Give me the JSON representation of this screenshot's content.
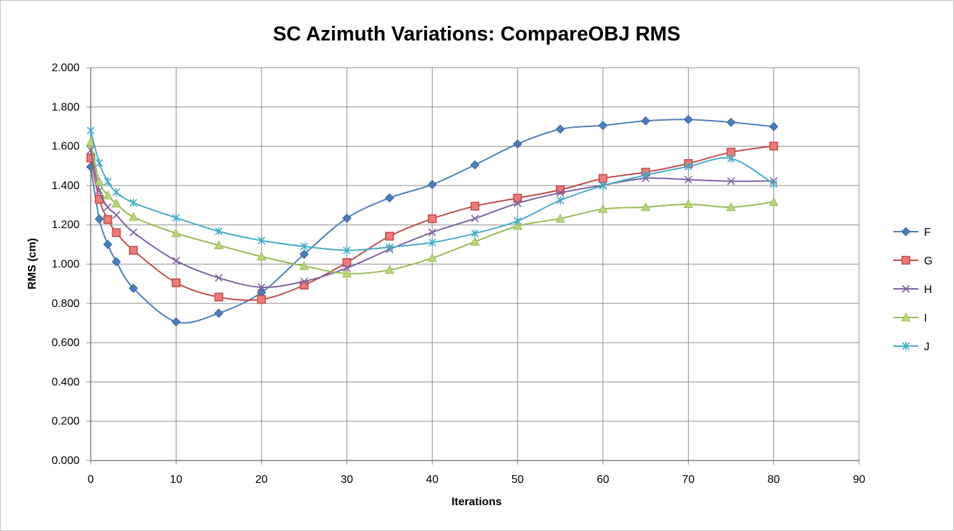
{
  "chart_data": {
    "type": "line",
    "title": "SC Azimuth Variations: CompareOBJ RMS",
    "xlabel": "Iterations",
    "ylabel": "RMS (cm)",
    "xlim": [
      0,
      90
    ],
    "ylim": [
      0,
      2
    ],
    "xticks": [
      "0",
      "10",
      "20",
      "30",
      "40",
      "50",
      "60",
      "70",
      "80",
      "90"
    ],
    "yticks": [
      "0.000",
      "0.200",
      "0.400",
      "0.600",
      "0.800",
      "1.000",
      "1.200",
      "1.400",
      "1.600",
      "1.800",
      "2.000"
    ],
    "grid": true,
    "legend_position": "right",
    "x": [
      0,
      1,
      2,
      3,
      5,
      10,
      15,
      20,
      25,
      30,
      35,
      40,
      45,
      50,
      55,
      60,
      65,
      70,
      75,
      80
    ],
    "series": [
      {
        "name": "F",
        "color": "#4a7ebb",
        "marker": "diamond",
        "values": [
          1.495,
          1.23,
          1.1,
          1.012,
          0.877,
          0.706,
          0.75,
          0.855,
          1.05,
          1.234,
          1.337,
          1.405,
          1.505,
          1.612,
          1.687,
          1.706,
          1.729,
          1.736,
          1.722,
          1.7
        ]
      },
      {
        "name": "G",
        "color": "#be4b48",
        "marker": "square",
        "values": [
          1.54,
          1.33,
          1.227,
          1.16,
          1.07,
          0.905,
          0.832,
          0.82,
          0.893,
          1.008,
          1.142,
          1.231,
          1.295,
          1.336,
          1.378,
          1.436,
          1.468,
          1.512,
          1.57,
          1.601
        ]
      },
      {
        "name": "H",
        "color": "#7d60a0",
        "marker": "x",
        "values": [
          1.58,
          1.375,
          1.29,
          1.25,
          1.162,
          1.017,
          0.93,
          0.882,
          0.912,
          0.98,
          1.075,
          1.162,
          1.232,
          1.31,
          1.363,
          1.402,
          1.437,
          1.43,
          1.422,
          1.423
        ]
      },
      {
        "name": "I",
        "color": "#98b954",
        "marker": "triangle",
        "values": [
          1.62,
          1.42,
          1.35,
          1.308,
          1.24,
          1.157,
          1.096,
          1.038,
          0.99,
          0.952,
          0.97,
          1.031,
          1.114,
          1.194,
          1.232,
          1.28,
          1.29,
          1.305,
          1.29,
          1.316
        ]
      },
      {
        "name": "J",
        "color": "#46aac5",
        "marker": "asterisk",
        "values": [
          1.68,
          1.515,
          1.42,
          1.366,
          1.312,
          1.236,
          1.167,
          1.12,
          1.09,
          1.07,
          1.086,
          1.11,
          1.156,
          1.22,
          1.325,
          1.399,
          1.453,
          1.497,
          1.538,
          1.408
        ]
      }
    ]
  }
}
